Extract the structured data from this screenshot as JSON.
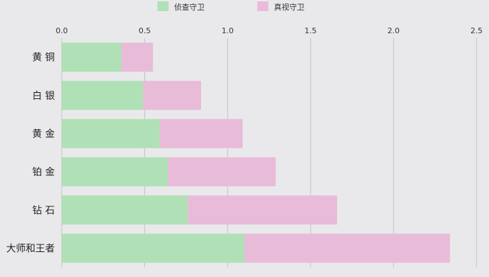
{
  "legend": [
    {
      "label": "侦查守卫",
      "color": "#b0e0b5"
    },
    {
      "label": "真视守卫",
      "color": "#e8bcd8"
    }
  ],
  "chart_data": {
    "type": "bar",
    "orientation": "horizontal",
    "stacked": true,
    "categories": [
      "黄 铜",
      "白 银",
      "黄 金",
      "铂 金",
      "钻 石",
      "大师和王者"
    ],
    "series": [
      {
        "name": "侦查守卫",
        "values": [
          0.36,
          0.49,
          0.59,
          0.64,
          0.76,
          1.1
        ],
        "color": "#b0e0b5"
      },
      {
        "name": "真视守卫",
        "values": [
          0.19,
          0.35,
          0.5,
          0.65,
          0.9,
          1.24
        ],
        "color": "#e8bcd8"
      }
    ],
    "xlim": [
      0,
      2.5
    ],
    "xticks": [
      "0.0",
      "0.5",
      "1.0",
      "1.5",
      "2.0",
      "2.5"
    ],
    "grid": "vertical",
    "legend_position": "top-center",
    "title": "",
    "xlabel": "",
    "ylabel": ""
  }
}
